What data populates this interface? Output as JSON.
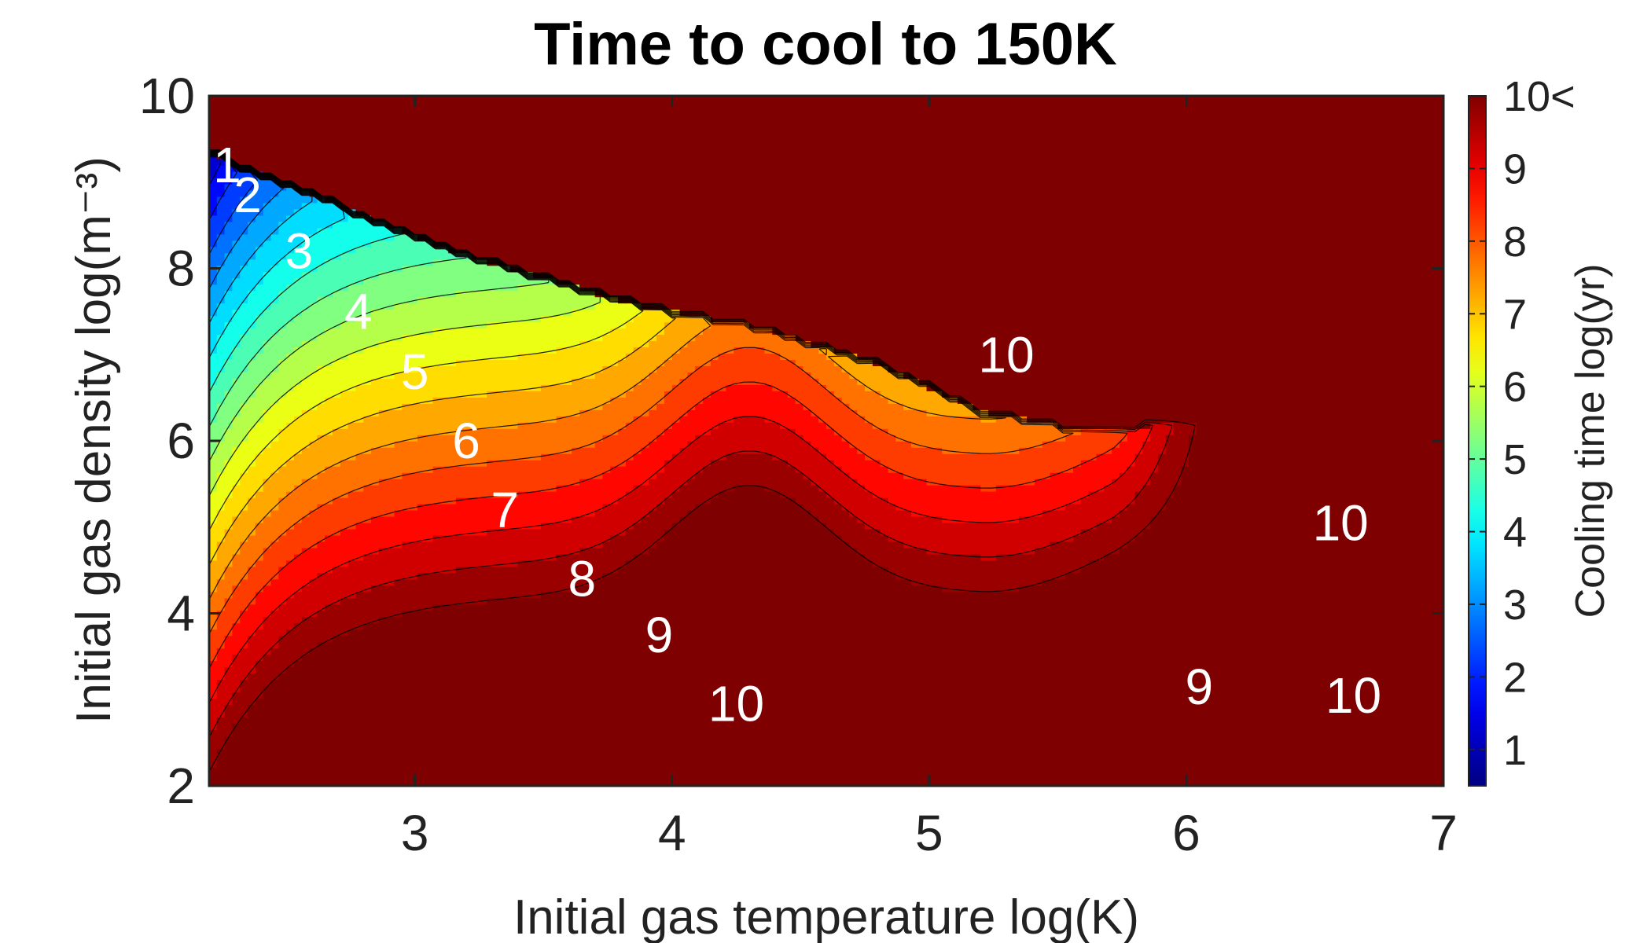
{
  "chart_data": {
    "type": "heatmap",
    "subtype": "filled-contour",
    "title": "Time to cool to 150K",
    "xlabel": "Initial gas temperature log(K)",
    "ylabel": "Initial gas density log(m⁻³)",
    "xlim": [
      2.2,
      7
    ],
    "ylim": [
      2,
      10
    ],
    "xticks": [
      3,
      4,
      5,
      6,
      7
    ],
    "yticks": [
      2,
      4,
      6,
      8,
      10
    ],
    "colorbar": {
      "label": "Cooling time log(yr)",
      "range": [
        0.5,
        10
      ],
      "ticks": [
        "1",
        "2",
        "3",
        "4",
        "5",
        "6",
        "7",
        "8",
        "9",
        "10<"
      ],
      "colormap": "jet"
    },
    "grid": false,
    "max_region_value": 10,
    "contour_levels": [
      1,
      1.5,
      2,
      2.5,
      3,
      3.5,
      4,
      4.5,
      5,
      5.5,
      6,
      6.5,
      7,
      7.5,
      8,
      8.5,
      9,
      9.5,
      10
    ],
    "contour_labels": [
      {
        "text": "1",
        "x": 2.27,
        "y": 9.2
      },
      {
        "text": "2",
        "x": 2.35,
        "y": 8.85
      },
      {
        "text": "3",
        "x": 2.55,
        "y": 8.2
      },
      {
        "text": "4",
        "x": 2.78,
        "y": 7.5
      },
      {
        "text": "5",
        "x": 3.0,
        "y": 6.8
      },
      {
        "text": "6",
        "x": 3.2,
        "y": 6.0
      },
      {
        "text": "7",
        "x": 3.35,
        "y": 5.2
      },
      {
        "text": "8",
        "x": 3.65,
        "y": 4.4
      },
      {
        "text": "9",
        "x": 3.95,
        "y": 3.75
      },
      {
        "text": "10",
        "x": 4.25,
        "y": 2.95
      },
      {
        "text": "10",
        "x": 5.3,
        "y": 7.0
      },
      {
        "text": "10",
        "x": 6.6,
        "y": 5.05
      },
      {
        "text": "9",
        "x": 6.05,
        "y": 3.15
      },
      {
        "text": "10",
        "x": 6.65,
        "y": 3.05
      }
    ]
  },
  "colors": {
    "max_region": "#7f0000",
    "background": "#ffffff"
  }
}
